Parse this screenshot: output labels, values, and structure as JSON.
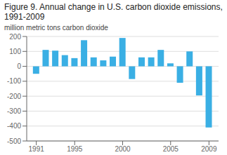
{
  "chart_data": {
    "type": "bar",
    "title": "Figure 9. Annual change in U.S. carbon dioxide emissions, 1991-2009",
    "ylabel": "million metric tons carbon dioxide",
    "x": [
      1991,
      1992,
      1993,
      1994,
      1995,
      1996,
      1997,
      1998,
      1999,
      2000,
      2001,
      2002,
      2003,
      2004,
      2005,
      2006,
      2007,
      2008,
      2009
    ],
    "values": [
      -50,
      110,
      105,
      75,
      55,
      175,
      60,
      40,
      65,
      190,
      -85,
      60,
      60,
      110,
      20,
      -110,
      100,
      -195,
      -410
    ],
    "color": "#3aafe4",
    "xlim": [
      1990.0,
      2010.0
    ],
    "xticks": [
      1991,
      1995,
      2000,
      2005,
      2009
    ],
    "ylim": [
      -500,
      200
    ],
    "yticks": [
      -500,
      -400,
      -300,
      -200,
      -100,
      0,
      100,
      200
    ],
    "grid": true
  }
}
